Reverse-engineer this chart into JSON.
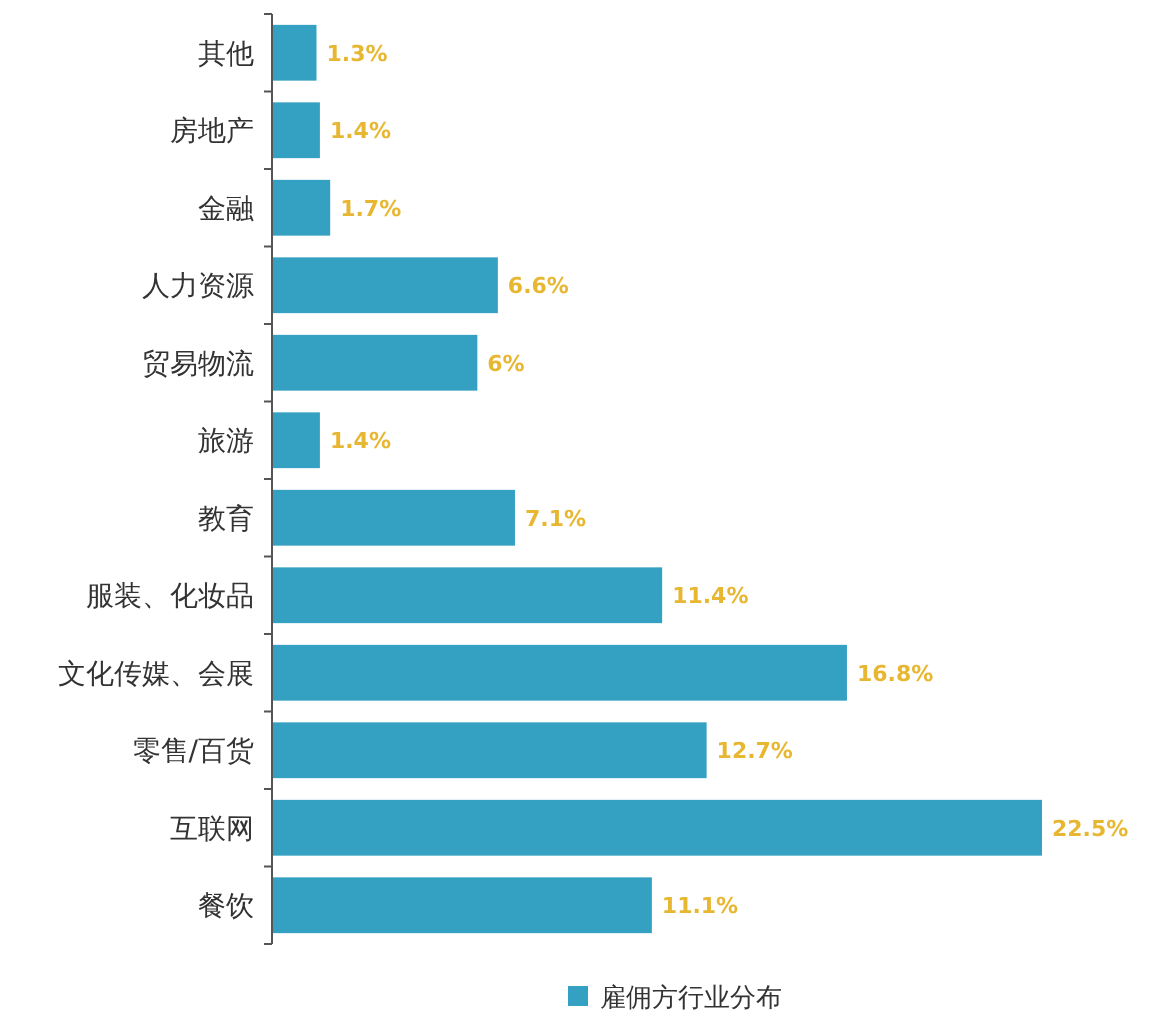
{
  "chart_data": {
    "type": "bar",
    "orientation": "horizontal",
    "categories": [
      "其他",
      "房地产",
      "金融",
      "人力资源",
      "贸易物流",
      "旅游",
      "教育",
      "服装、化妆品",
      "文化传媒、会展",
      "零售/百货",
      "互联网",
      "餐饮"
    ],
    "series": [
      {
        "name": "雇佣方行业分布",
        "color": "#35a1c2",
        "values": [
          1.3,
          1.4,
          1.7,
          6.6,
          6,
          1.4,
          7.1,
          11.4,
          16.8,
          12.7,
          22.5,
          11.1
        ],
        "value_labels": [
          "1.3%",
          "1.4%",
          "1.7%",
          "6.6%",
          "6%",
          "1.4%",
          "7.1%",
          "11.4%",
          "16.8%",
          "12.7%",
          "22.5%",
          "11.1%"
        ]
      }
    ],
    "legend": "bottom"
  }
}
